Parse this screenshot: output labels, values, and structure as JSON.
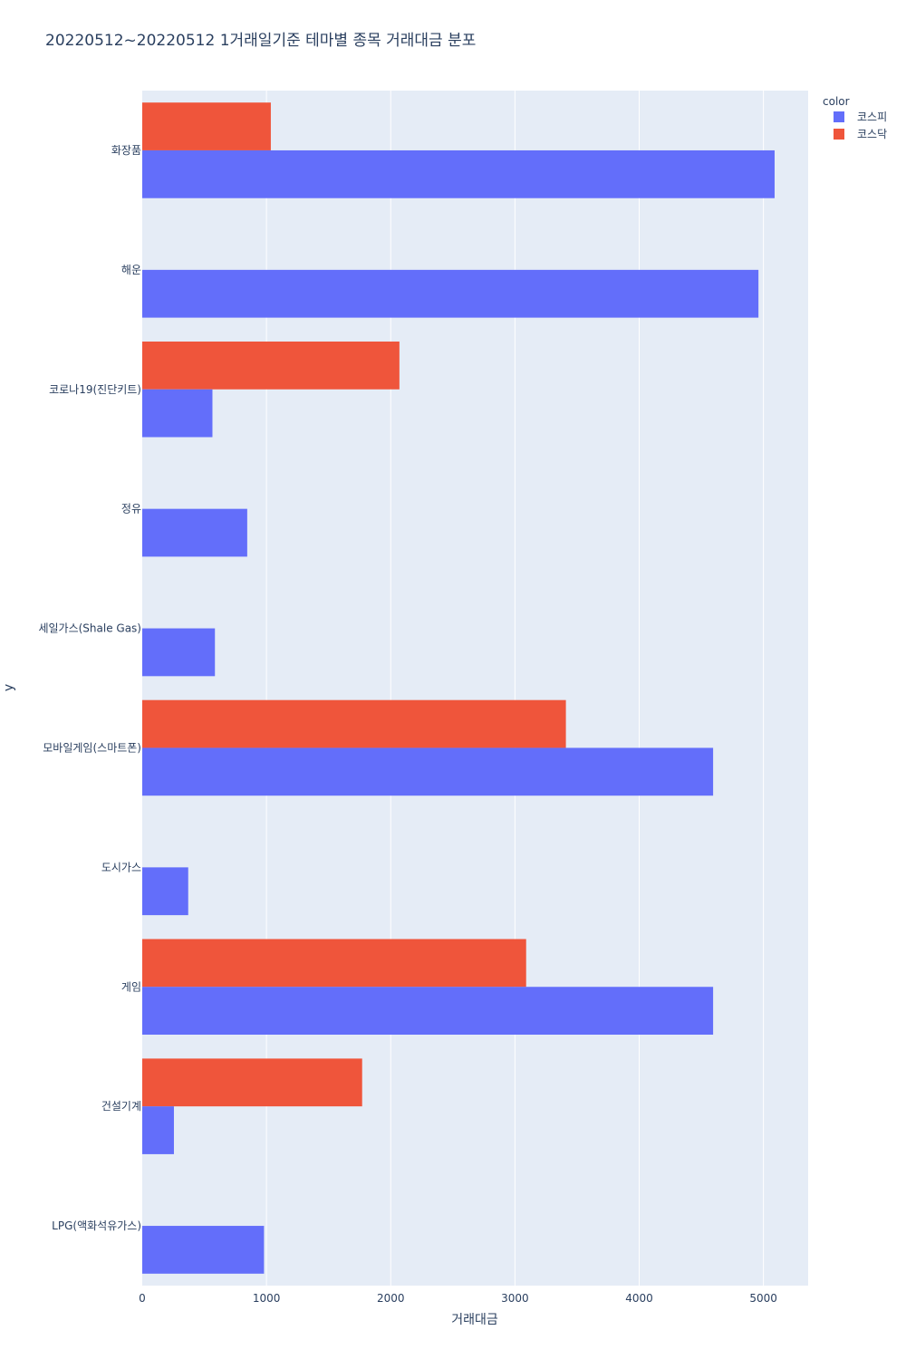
{
  "chart_data": {
    "type": "bar",
    "orientation": "horizontal",
    "title": "20220512~20220512 1거래일기준 테마별 종목 거래대금 분포",
    "xlabel": "거래대금",
    "ylabel": "y",
    "xlim": [
      0,
      5360
    ],
    "xticks": [
      0,
      1000,
      2000,
      3000,
      4000,
      5000
    ],
    "xtick_labels": [
      "0",
      "1000",
      "2000",
      "3000",
      "4000",
      "5000"
    ],
    "grid": true,
    "legend_title": "color",
    "legend_position": "top-right",
    "categories": [
      "화장품",
      "해운",
      "코로나19(진단키트)",
      "정유",
      "세일가스(Shale Gas)",
      "모바일게임(스마트폰)",
      "도시가스",
      "게임",
      "건설기계",
      "LPG(액화석유가스)"
    ],
    "series": [
      {
        "name": "코스피",
        "color": "#636efa",
        "values": [
          5090,
          4960,
          565,
          845,
          585,
          4595,
          370,
          4595,
          255,
          980
        ]
      },
      {
        "name": "코스닥",
        "color": "#ef553b",
        "values": [
          1035,
          0,
          2070,
          0,
          0,
          3410,
          0,
          3090,
          1770,
          0
        ]
      }
    ]
  }
}
